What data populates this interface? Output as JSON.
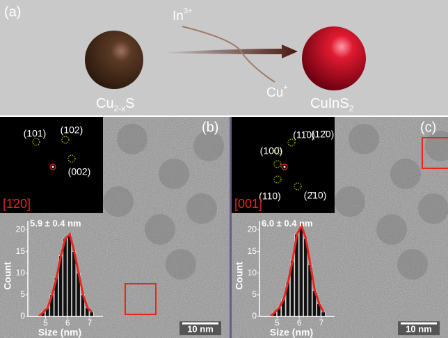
{
  "panel_a": {
    "label": "(a)",
    "reactant": {
      "base": "Cu",
      "sub": "2-x",
      "tail": "S"
    },
    "product": {
      "base": "CuInS",
      "sub": "2"
    },
    "reagent_in": {
      "base": "In",
      "sup": "3+"
    },
    "reagent_out": {
      "base": "Cu",
      "sup": "+"
    }
  },
  "panels": [
    {
      "label": "(b)",
      "fft": {
        "zone_axis": "[1̄20]",
        "spots": [
          "(101)",
          "(102)",
          "(002)"
        ]
      },
      "scale_bar": "10 nm",
      "histogram": {
        "type": "histogram",
        "title": "5.9 ± 0.4 nm",
        "x_label": "Size (nm)",
        "y_label": "Count",
        "bins": [
          4.6,
          4.8,
          5.0,
          5.2,
          5.4,
          5.6,
          5.8,
          6.0,
          6.2,
          6.4,
          6.6,
          6.8,
          7.0,
          7.2
        ],
        "counts": [
          0,
          1,
          2,
          5,
          9,
          14,
          18,
          19,
          15,
          10,
          5,
          2,
          1
        ],
        "xlim": [
          4.2,
          7.6
        ],
        "ylim": [
          0,
          22
        ],
        "xticks": [
          5,
          6,
          7
        ],
        "yticks": [
          0,
          5,
          10,
          15,
          20
        ],
        "color": "#111111",
        "fit_color": "#e8251f"
      }
    },
    {
      "label": "(c)",
      "fft": {
        "zone_axis": "[001]",
        "spots": [
          "(100)",
          "(11̄0)",
          "(12̄0)",
          "(110)",
          "(2̄10)"
        ]
      },
      "scale_bar": "10 nm",
      "histogram": {
        "type": "histogram",
        "title": "6.0 ± 0.4 nm",
        "x_label": "Size (nm)",
        "y_label": "Count",
        "bins": [
          4.6,
          4.8,
          5.0,
          5.2,
          5.4,
          5.6,
          5.8,
          6.0,
          6.2,
          6.4,
          6.6,
          6.8,
          7.0,
          7.2
        ],
        "counts": [
          0,
          1,
          2,
          4,
          8,
          13,
          19,
          21,
          18,
          12,
          6,
          3,
          1
        ],
        "xlim": [
          4.2,
          7.6
        ],
        "ylim": [
          0,
          22
        ],
        "xticks": [
          5,
          6,
          7
        ],
        "yticks": [
          0,
          5,
          10,
          15,
          20
        ],
        "color": "#111111",
        "fit_color": "#e8251f"
      }
    }
  ]
}
